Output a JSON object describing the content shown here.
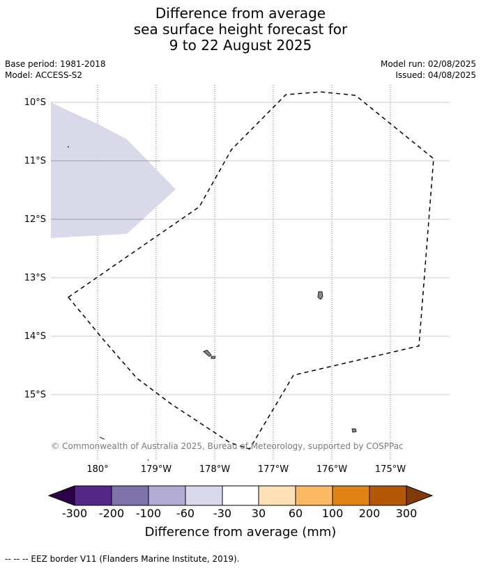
{
  "title": {
    "line1": "Difference from average",
    "line2": "sea surface height forecast for",
    "line3": "9 to 22 August 2025"
  },
  "meta": {
    "base_period": "Base period: 1981-2018",
    "model": "Model: ACCESS-S2",
    "model_run": "Model run: 02/08/2025",
    "issued": "Issued: 04/08/2025"
  },
  "map": {
    "lat_labels": [
      "10°S",
      "11°S",
      "12°S",
      "13°S",
      "14°S",
      "15°S"
    ],
    "lon_labels": [
      "180°",
      "179°W",
      "178°W",
      "177°W",
      "176°W",
      "175°W"
    ],
    "attribution": "© Commonwealth of Australia 2025, Bureau of Meteorology, supported by COSPPac",
    "anomaly_color": "#d7d7e9",
    "eez_style": "dashed black line"
  },
  "colorbar": {
    "tick_labels": [
      "-300",
      "-200",
      "-100",
      "-60",
      "-30",
      "30",
      "60",
      "100",
      "200",
      "300"
    ],
    "colors": [
      "#2d004b",
      "#542788",
      "#8073ac",
      "#b2abd2",
      "#d8daeb",
      "#ffffff",
      "#fee0b6",
      "#fdb863",
      "#e08214",
      "#b35806",
      "#7f3b08"
    ],
    "title": "Difference from average (mm)"
  },
  "footer": {
    "legend": "--  --  -- EEZ border V11 (Flanders Marine Institute, 2019)."
  }
}
